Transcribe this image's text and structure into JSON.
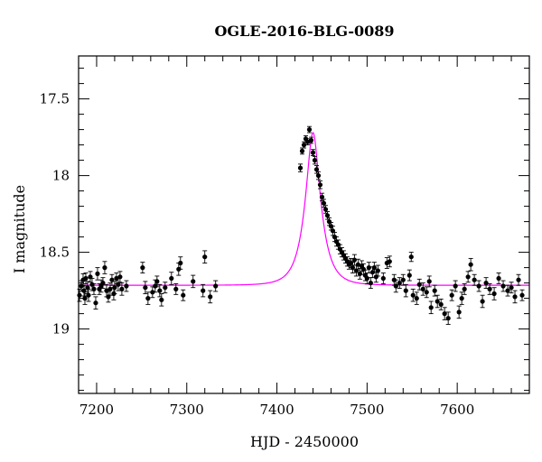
{
  "chart_data": {
    "type": "scatter",
    "title": "OGLE-2016-BLG-0089",
    "xlabel": "HJD - 2450000",
    "ylabel": "I magnitude",
    "xlim": [
      7180,
      7680
    ],
    "ylim": [
      19.42,
      17.22
    ],
    "y_inverted": true,
    "x_major_ticks": [
      7200,
      7300,
      7400,
      7500,
      7600
    ],
    "x_tick_labels": [
      "7200",
      "7300",
      "7400",
      "7500",
      "7600"
    ],
    "x_minor_step": 20,
    "y_major_ticks": [
      17.5,
      18,
      18.5,
      19
    ],
    "y_tick_labels": [
      "17.5",
      "18",
      "18.5",
      "19"
    ],
    "y_minor_step": 0.1,
    "grid": false,
    "colors": {
      "points": "#000000",
      "model": "#ff00ff",
      "frame": "#000000"
    },
    "model": {
      "name": "microlensing model",
      "baseline_mag": 18.715,
      "peak_mag": 17.72,
      "t0": 7440,
      "u0": 0.39,
      "tE": 16.5
    },
    "series": [
      {
        "x": [
          7181,
          7183,
          7185,
          7186,
          7187,
          7188,
          7190,
          7191,
          7193,
          7195,
          7197,
          7199,
          7201,
          7203,
          7205,
          7207,
          7209,
          7211,
          7213,
          7215,
          7217,
          7219,
          7220,
          7222,
          7224,
          7226,
          7228,
          7233,
          7251,
          7254,
          7257,
          7262,
          7265,
          7267,
          7270,
          7272,
          7276,
          7283,
          7288,
          7291,
          7293,
          7296,
          7307,
          7318,
          7320,
          7326,
          7332,
          7426,
          7428,
          7430,
          7432,
          7434,
          7436,
          7438,
          7440,
          7442,
          7444,
          7446,
          7448,
          7450,
          7452,
          7454,
          7456,
          7458,
          7460,
          7462,
          7464,
          7466,
          7468,
          7470,
          7472,
          7474,
          7476,
          7478,
          7480,
          7482,
          7484,
          7486,
          7488,
          7490,
          7492,
          7494,
          7496,
          7498,
          7500,
          7502,
          7504,
          7506,
          7508,
          7510,
          7512,
          7518,
          7522,
          7525,
          7530,
          7532,
          7536,
          7540,
          7543,
          7547,
          7549,
          7551,
          7555,
          7558,
          7562,
          7566,
          7569,
          7571,
          7575,
          7578,
          7582,
          7586,
          7590,
          7594,
          7598,
          7602,
          7605,
          7608,
          7612,
          7615,
          7619,
          7624,
          7628,
          7632,
          7636,
          7641,
          7646,
          7651,
          7656,
          7660,
          7664,
          7668,
          7672
        ],
        "y": [
          18.78,
          18.72,
          18.68,
          18.75,
          18.8,
          18.67,
          18.73,
          18.78,
          18.66,
          18.71,
          18.74,
          18.83,
          18.64,
          18.74,
          18.72,
          18.7,
          18.6,
          18.75,
          18.79,
          18.74,
          18.68,
          18.77,
          18.73,
          18.67,
          18.71,
          18.66,
          18.74,
          18.72,
          18.6,
          18.73,
          18.8,
          18.76,
          18.72,
          18.69,
          18.75,
          18.81,
          18.73,
          18.67,
          18.74,
          18.61,
          18.57,
          18.78,
          18.69,
          18.75,
          18.53,
          18.79,
          18.72,
          17.95,
          17.84,
          17.8,
          17.76,
          17.78,
          17.7,
          17.77,
          17.85,
          17.9,
          17.96,
          18.0,
          18.06,
          18.14,
          18.18,
          18.22,
          18.26,
          18.3,
          18.33,
          18.36,
          18.4,
          18.43,
          18.45,
          18.48,
          18.5,
          18.52,
          18.54,
          18.56,
          18.58,
          18.57,
          18.6,
          18.55,
          18.62,
          18.58,
          18.64,
          18.59,
          18.61,
          18.65,
          18.67,
          18.6,
          18.7,
          18.63,
          18.6,
          18.66,
          18.62,
          18.67,
          18.57,
          18.56,
          18.68,
          18.72,
          18.7,
          18.68,
          18.75,
          18.65,
          18.53,
          18.78,
          18.8,
          18.71,
          18.74,
          18.76,
          18.69,
          18.86,
          18.75,
          18.82,
          18.84,
          18.9,
          18.93,
          18.78,
          18.72,
          18.89,
          18.8,
          18.74,
          18.66,
          18.58,
          18.68,
          18.72,
          18.82,
          18.7,
          18.74,
          18.77,
          18.67,
          18.72,
          18.75,
          18.73,
          18.79,
          18.68,
          18.78
        ],
        "err": [
          0.04,
          0.035,
          0.04,
          0.035,
          0.04,
          0.035,
          0.04,
          0.04,
          0.035,
          0.04,
          0.035,
          0.04,
          0.04,
          0.035,
          0.04,
          0.035,
          0.04,
          0.04,
          0.035,
          0.04,
          0.035,
          0.04,
          0.04,
          0.035,
          0.04,
          0.035,
          0.04,
          0.035,
          0.035,
          0.04,
          0.04,
          0.035,
          0.04,
          0.035,
          0.04,
          0.04,
          0.035,
          0.04,
          0.035,
          0.04,
          0.04,
          0.035,
          0.04,
          0.04,
          0.04,
          0.04,
          0.035,
          0.025,
          0.02,
          0.02,
          0.02,
          0.02,
          0.02,
          0.02,
          0.02,
          0.025,
          0.025,
          0.025,
          0.025,
          0.025,
          0.025,
          0.025,
          0.025,
          0.025,
          0.025,
          0.03,
          0.03,
          0.03,
          0.03,
          0.03,
          0.03,
          0.03,
          0.03,
          0.03,
          0.03,
          0.03,
          0.035,
          0.035,
          0.035,
          0.035,
          0.035,
          0.035,
          0.035,
          0.035,
          0.035,
          0.035,
          0.035,
          0.035,
          0.035,
          0.035,
          0.035,
          0.035,
          0.035,
          0.035,
          0.035,
          0.04,
          0.035,
          0.035,
          0.04,
          0.035,
          0.03,
          0.04,
          0.04,
          0.035,
          0.04,
          0.035,
          0.035,
          0.04,
          0.035,
          0.04,
          0.035,
          0.04,
          0.04,
          0.035,
          0.035,
          0.04,
          0.04,
          0.035,
          0.035,
          0.04,
          0.035,
          0.035,
          0.04,
          0.035,
          0.035,
          0.04,
          0.035,
          0.035,
          0.035,
          0.035,
          0.04,
          0.035,
          0.035
        ]
      }
    ]
  }
}
